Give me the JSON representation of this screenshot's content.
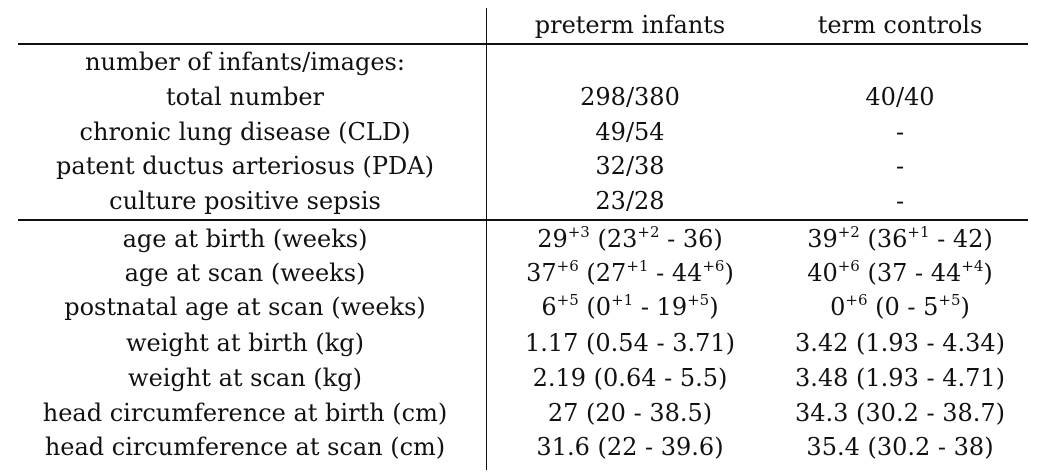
{
  "table": {
    "headers": [
      "",
      "preterm infants",
      "term controls"
    ],
    "section_label": "number of infants/images:",
    "counts_rows": [
      {
        "label": "total number",
        "preterm": "298/380",
        "term": "40/40"
      },
      {
        "label": "chronic lung disease (CLD)",
        "preterm": "49/54",
        "term": "-"
      },
      {
        "label": "patent ductus arteriosus (PDA)",
        "preterm": "32/38",
        "term": "-"
      },
      {
        "label": "culture positive sepsis",
        "preterm": "23/28",
        "term": "-"
      }
    ],
    "measure_rows": [
      {
        "label": "age at birth (weeks)",
        "preterm": [
          [
            "29",
            ""
          ],
          [
            "+3",
            "sup"
          ],
          [
            " (23",
            ""
          ],
          [
            "+2",
            "sup"
          ],
          [
            " - 36)",
            ""
          ]
        ],
        "term": [
          [
            "39",
            ""
          ],
          [
            "+2",
            "sup"
          ],
          [
            " (36",
            ""
          ],
          [
            "+1",
            "sup"
          ],
          [
            " - 42)",
            ""
          ]
        ]
      },
      {
        "label": "age at scan (weeks)",
        "preterm": [
          [
            "37",
            ""
          ],
          [
            "+6",
            "sup"
          ],
          [
            " (27",
            ""
          ],
          [
            "+1",
            "sup"
          ],
          [
            " - 44",
            ""
          ],
          [
            "+6",
            "sup"
          ],
          [
            ")",
            ""
          ]
        ],
        "term": [
          [
            "40",
            ""
          ],
          [
            "+6",
            "sup"
          ],
          [
            " (37 - 44",
            ""
          ],
          [
            "+4",
            "sup"
          ],
          [
            ")",
            ""
          ]
        ]
      },
      {
        "label": "postnatal age at scan (weeks)",
        "preterm": [
          [
            "6",
            ""
          ],
          [
            "+5",
            "sup"
          ],
          [
            " (0",
            ""
          ],
          [
            "+1",
            "sup"
          ],
          [
            " - 19",
            ""
          ],
          [
            "+5",
            "sup"
          ],
          [
            ")",
            ""
          ]
        ],
        "term": [
          [
            "0",
            ""
          ],
          [
            "+6",
            "sup"
          ],
          [
            " (0 - 5",
            ""
          ],
          [
            "+5",
            "sup"
          ],
          [
            ")",
            ""
          ]
        ]
      },
      {
        "label": "weight at birth (kg)",
        "preterm": [
          [
            "1.17 (0.54 - 3.71)",
            ""
          ]
        ],
        "term": [
          [
            "3.42 (1.93 - 4.34)",
            ""
          ]
        ]
      },
      {
        "label": "weight at scan (kg)",
        "preterm": [
          [
            "2.19 (0.64 - 5.5)",
            ""
          ]
        ],
        "term": [
          [
            "3.48 (1.93 - 4.71)",
            ""
          ]
        ]
      },
      {
        "label": "head circumference at birth (cm)",
        "preterm": [
          [
            "27 (20 - 38.5)",
            ""
          ]
        ],
        "term": [
          [
            "34.3 (30.2 - 38.7)",
            ""
          ]
        ]
      },
      {
        "label": "head circumference at scan (cm)",
        "preterm": [
          [
            "31.6 (22 - 39.6)",
            ""
          ]
        ],
        "term": [
          [
            "35.4 (30.2 - 38)",
            ""
          ]
        ]
      }
    ]
  }
}
